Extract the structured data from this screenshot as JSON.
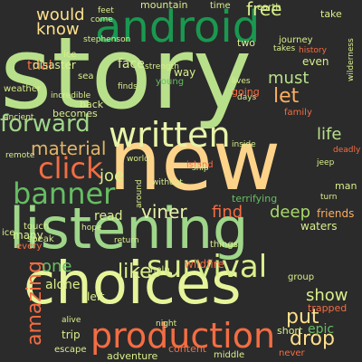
{
  "background_color": "#2b2b2b",
  "words": [
    {
      "text": "story",
      "color": "#b8e08a",
      "rot": 0
    },
    {
      "text": "new",
      "color": "#fdd38a",
      "rot": 0
    },
    {
      "text": "choices",
      "color": "#e6f59a",
      "rot": 0
    },
    {
      "text": "listening",
      "color": "#9fd68a",
      "rot": 0
    },
    {
      "text": "android",
      "color": "#1a9850",
      "rot": 0
    },
    {
      "text": "production",
      "color": "#f46d43",
      "rot": 0
    },
    {
      "text": "survival",
      "color": "#d9ef8b",
      "rot": 0
    },
    {
      "text": "written",
      "color": "#e8f3a8",
      "rot": 0
    },
    {
      "text": "banner",
      "color": "#66bd63",
      "rot": 0
    },
    {
      "text": "click",
      "color": "#f46d43",
      "rot": 0
    },
    {
      "text": "material",
      "color": "#e2b469",
      "rot": 0
    },
    {
      "text": "forward",
      "color": "#9fd68a",
      "rot": 0
    },
    {
      "text": "would",
      "color": "#fee08b",
      "rot": 0
    },
    {
      "text": "know",
      "color": "#fee08b",
      "rot": 0
    },
    {
      "text": "viner",
      "color": "#e8f3a8",
      "rot": 0
    },
    {
      "text": "like",
      "color": "#d9ef8b",
      "rot": 0
    },
    {
      "text": "put",
      "color": "#fee08b",
      "rot": 0
    },
    {
      "text": "drop",
      "color": "#fee08b",
      "rot": 0
    },
    {
      "text": "show",
      "color": "#d9ef8b",
      "rot": 0
    },
    {
      "text": "amazing",
      "color": "#f46d43",
      "rot": -90
    },
    {
      "text": "joe",
      "color": "#d9ef8b",
      "rot": 0
    },
    {
      "text": "let",
      "color": "#fdae61",
      "rot": 0
    },
    {
      "text": "must",
      "color": "#b8e08a",
      "rot": 0
    },
    {
      "text": "life",
      "color": "#b8e08a",
      "rot": 0
    },
    {
      "text": "find",
      "color": "#f46d43",
      "rot": 0
    },
    {
      "text": "deep",
      "color": "#a6d96a",
      "rot": 0
    },
    {
      "text": "read",
      "color": "#d9ef8b",
      "rot": 0
    },
    {
      "text": "one",
      "color": "#66bd63",
      "rot": 0
    },
    {
      "text": "alone",
      "color": "#d9ef8b",
      "rot": 0
    },
    {
      "text": "free",
      "color": "#d9ef8b",
      "rot": 0
    },
    {
      "text": "mountain",
      "color": "#d9ef8b",
      "rot": 0
    },
    {
      "text": "trial",
      "color": "#f46d43",
      "rot": 0
    },
    {
      "text": "disaster",
      "color": "#d9ef8b",
      "rot": 0
    },
    {
      "text": "face",
      "color": "#d9ef8b",
      "rot": 0
    },
    {
      "text": "way",
      "color": "#d9ef8b",
      "rot": 0
    },
    {
      "text": "family",
      "color": "#f46d43",
      "rot": 0
    },
    {
      "text": "adventure",
      "color": "#d9ef8b",
      "rot": 0
    },
    {
      "text": "content",
      "color": "#f46d43",
      "rot": 0
    },
    {
      "text": "middle",
      "color": "#d9ef8b",
      "rot": 0
    },
    {
      "text": "trip",
      "color": "#d9ef8b",
      "rot": 0
    },
    {
      "text": "left",
      "color": "#d9ef8b",
      "rot": 0
    },
    {
      "text": "epic",
      "color": "#66bd63",
      "rot": 0
    },
    {
      "text": "trapped",
      "color": "#f46d43",
      "rot": 0
    },
    {
      "text": "friends",
      "color": "#fdae61",
      "rot": 0
    },
    {
      "text": "waters",
      "color": "#d9ef8b",
      "rot": 0
    },
    {
      "text": "group",
      "color": "#d9ef8b",
      "rot": 0
    },
    {
      "text": "short",
      "color": "#d9ef8b",
      "rot": 0
    },
    {
      "text": "never",
      "color": "#f46d43",
      "rot": 0
    },
    {
      "text": "many",
      "color": "#d9ef8b",
      "rot": 0
    },
    {
      "text": "every",
      "color": "#f46d43",
      "rot": 0
    },
    {
      "text": "ice",
      "color": "#d9ef8b",
      "rot": 0
    },
    {
      "text": "touch",
      "color": "#d9ef8b",
      "rot": 0
    },
    {
      "text": "speak",
      "color": "#d9ef8b",
      "rot": 0
    },
    {
      "text": "terrifying",
      "color": "#66bd63",
      "rot": 0
    },
    {
      "text": "wildfire",
      "color": "#f46d43",
      "rot": 0
    },
    {
      "text": "help",
      "color": "#d9ef8b",
      "rot": 0
    },
    {
      "text": "things",
      "color": "#d9ef8b",
      "rot": 0
    },
    {
      "text": "island",
      "color": "#f46d43",
      "rot": 0
    },
    {
      "text": "two",
      "color": "#d9ef8b",
      "rot": 0
    },
    {
      "text": "even",
      "color": "#d9ef8b",
      "rot": 0
    },
    {
      "text": "sea",
      "color": "#d9ef8b",
      "rot": 0
    },
    {
      "text": "weather",
      "color": "#d9ef8b",
      "rot": 0
    },
    {
      "text": "becomes",
      "color": "#d9ef8b",
      "rot": 0
    },
    {
      "text": "back",
      "color": "#d9ef8b",
      "rot": 0
    },
    {
      "text": "going",
      "color": "#f46d43",
      "rot": 0
    },
    {
      "text": "young",
      "color": "#66bd63",
      "rot": 0
    },
    {
      "text": "journey",
      "color": "#d9ef8b",
      "rot": 0
    },
    {
      "text": "take",
      "color": "#d9ef8b",
      "rot": 0
    },
    {
      "text": "time",
      "color": "#d9ef8b",
      "rot": 0
    },
    {
      "text": "earth",
      "color": "#d9ef8b",
      "rot": 0
    },
    {
      "text": "incredible",
      "color": "#d9ef8b",
      "rot": 0
    },
    {
      "text": "history",
      "color": "#f46d43",
      "rot": 0
    },
    {
      "text": "world",
      "color": "#d9ef8b",
      "rot": 0
    },
    {
      "text": "escape",
      "color": "#d9ef8b",
      "rot": 0
    },
    {
      "text": "night",
      "color": "#d9ef8b",
      "rot": 0
    },
    {
      "text": "return",
      "color": "#d9ef8b",
      "rot": 0
    },
    {
      "text": "days",
      "color": "#d9ef8b",
      "rot": 0
    },
    {
      "text": "lives",
      "color": "#d9ef8b",
      "rot": 0
    },
    {
      "text": "hope",
      "color": "#d9ef8b",
      "rot": 0
    },
    {
      "text": "wilderness",
      "color": "#d9ef8b",
      "rot": -90
    },
    {
      "text": "feet",
      "color": "#d9ef8b",
      "rot": 0
    },
    {
      "text": "remote",
      "color": "#d9ef8b",
      "rot": 0
    },
    {
      "text": "around",
      "color": "#d9ef8b",
      "rot": -90
    },
    {
      "text": "without",
      "color": "#d9ef8b",
      "rot": 0
    },
    {
      "text": "ship",
      "color": "#d9ef8b",
      "rot": 0
    },
    {
      "text": "finds",
      "color": "#d9ef8b",
      "rot": 0
    },
    {
      "text": "strength",
      "color": "#d9ef8b",
      "rot": 0
    },
    {
      "text": "ancient",
      "color": "#d9ef8b",
      "rot": 0
    },
    {
      "text": "turn",
      "color": "#d9ef8b",
      "rot": 0
    },
    {
      "text": "alive",
      "color": "#d9ef8b",
      "rot": 0
    },
    {
      "text": "jeep",
      "color": "#d9ef8b",
      "rot": 0
    },
    {
      "text": "man",
      "color": "#d9ef8b",
      "rot": 0
    },
    {
      "text": "come",
      "color": "#d9ef8b",
      "rot": 0
    },
    {
      "text": "deadly",
      "color": "#f46d43",
      "rot": 0
    },
    {
      "text": "stephenson",
      "color": "#d9ef8b",
      "rot": 0
    },
    {
      "text": "inside",
      "color": "#d9ef8b",
      "rot": 0
    },
    {
      "text": "takes",
      "color": "#d9ef8b",
      "rot": 0
    },
    {
      "text": "ice",
      "color": "#d9ef8b",
      "rot": 0
    }
  ]
}
